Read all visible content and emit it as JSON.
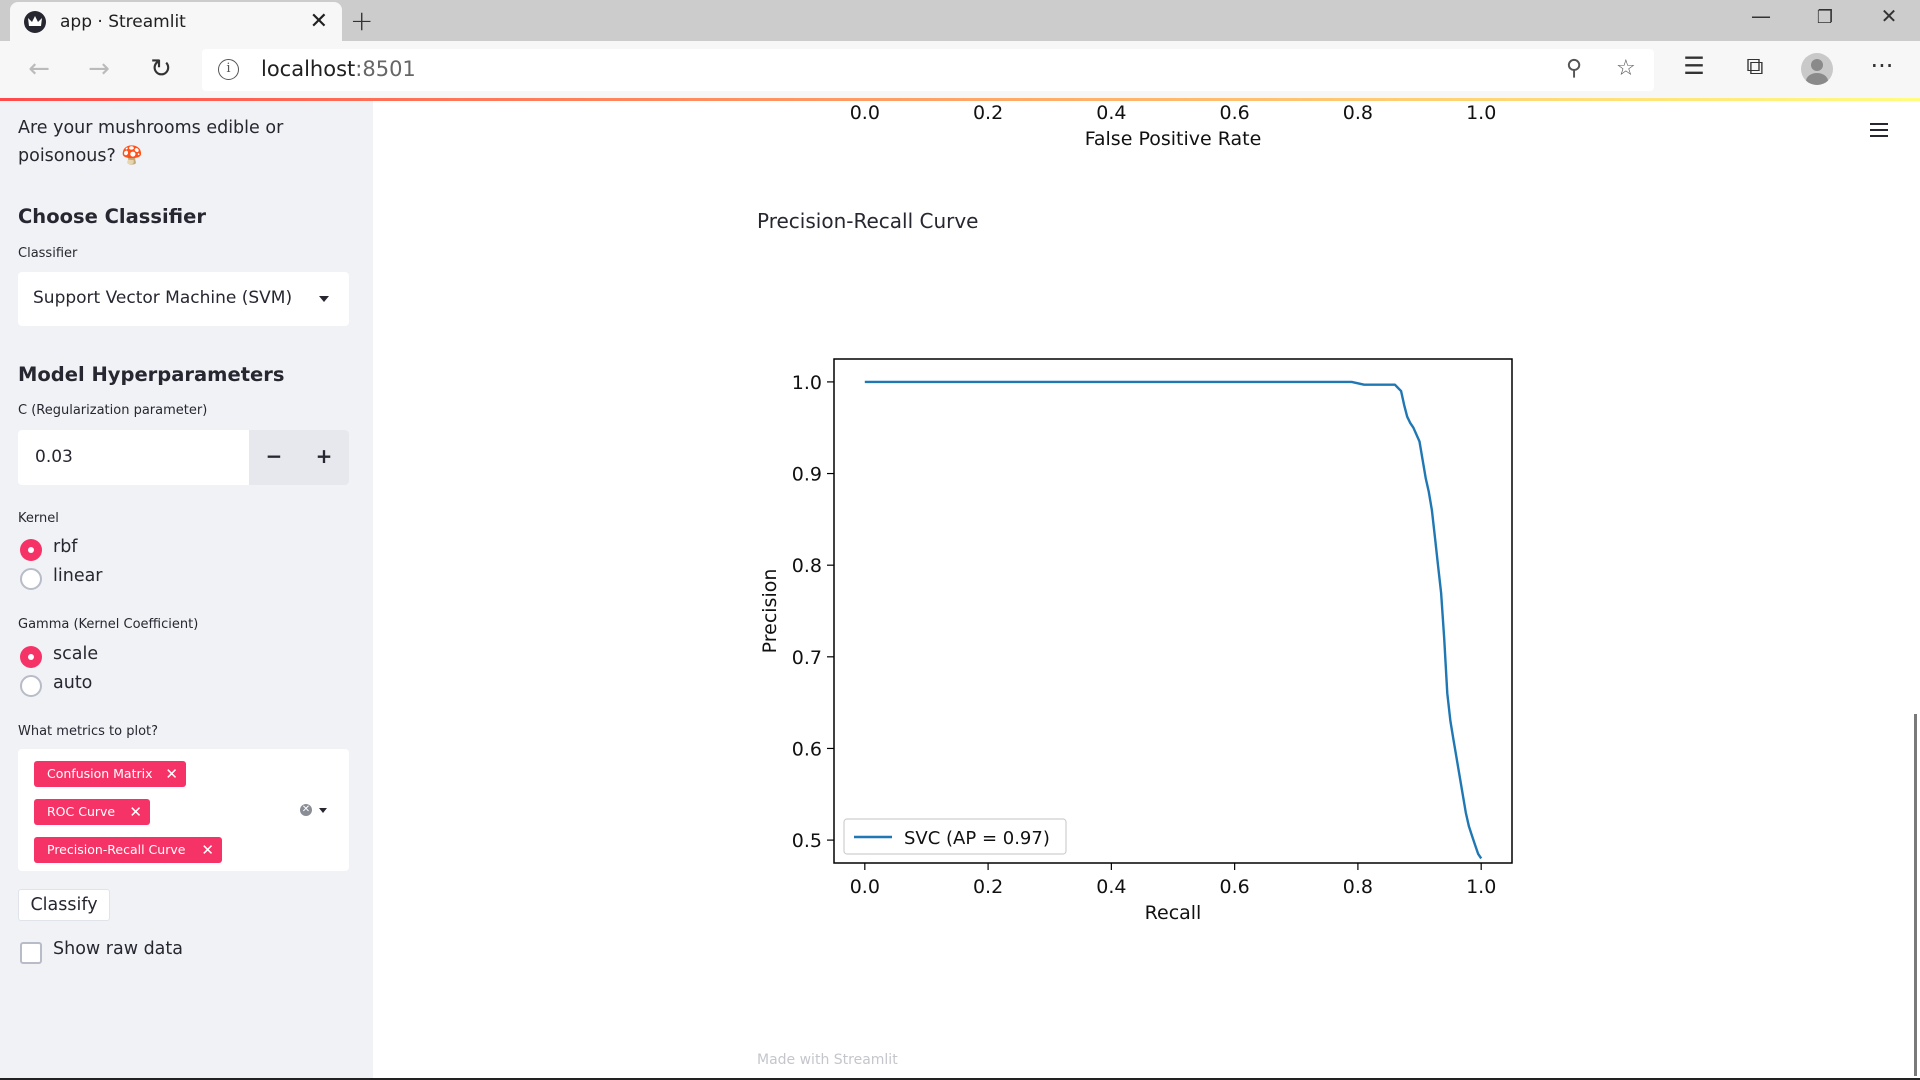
{
  "browser": {
    "tab_title": "app · Streamlit",
    "url_host": "localhost",
    "url_port": ":8501"
  },
  "sidebar": {
    "intro": "Are your mushrooms edible or",
    "intro_line2": "poisonous? 🍄",
    "choose_classifier_heading": "Choose Classifier",
    "classifier_label": "Classifier",
    "classifier_value": "Support Vector Machine (SVM)",
    "hyperparams_heading": "Model Hyperparameters",
    "c_label": "C (Regularization parameter)",
    "c_value": "0.03",
    "c_minus": "−",
    "c_plus": "+",
    "kernel_label": "Kernel",
    "kernel_options": [
      {
        "label": "rbf",
        "checked": true
      },
      {
        "label": "linear",
        "checked": false
      }
    ],
    "gamma_label": "Gamma (Kernel Coefficient)",
    "gamma_options": [
      {
        "label": "scale",
        "checked": true
      },
      {
        "label": "auto",
        "checked": false
      }
    ],
    "metrics_label": "What metrics to plot?",
    "metrics_selected": [
      "Confusion Matrix",
      "ROC Curve",
      "Precision-Recall Curve"
    ],
    "classify_label": "Classify",
    "raw_data_label": "Show raw data"
  },
  "main": {
    "footer": "Made with Streamlit"
  },
  "roc_partial": {
    "xticks": [
      "0.0",
      "0.2",
      "0.4",
      "0.6",
      "0.8",
      "1.0"
    ],
    "xlabel": "False Positive Rate"
  },
  "chart_data": {
    "type": "line",
    "title": "Precision-Recall Curve",
    "xlabel": "Recall",
    "ylabel": "Precision",
    "xlim": [
      -0.05,
      1.05
    ],
    "ylim": [
      0.475,
      1.025
    ],
    "xticks": [
      "0.0",
      "0.2",
      "0.4",
      "0.6",
      "0.8",
      "1.0"
    ],
    "yticks": [
      "0.5",
      "0.6",
      "0.7",
      "0.8",
      "0.9",
      "1.0"
    ],
    "legend": "lower-left",
    "grid": false,
    "series": [
      {
        "name": "SVC (AP = 0.97)",
        "color": "#1f77b4",
        "x": [
          0.0,
          0.5,
          0.79,
          0.81,
          0.86,
          0.87,
          0.875,
          0.88,
          0.885,
          0.89,
          0.9,
          0.905,
          0.91,
          0.915,
          0.92,
          0.925,
          0.93,
          0.935,
          0.94,
          0.945,
          0.95,
          0.955,
          0.96,
          0.965,
          0.97,
          0.975,
          0.98,
          0.985,
          0.99,
          0.995,
          1.0
        ],
        "y": [
          1.0,
          1.0,
          1.0,
          0.997,
          0.997,
          0.99,
          0.975,
          0.962,
          0.955,
          0.95,
          0.935,
          0.915,
          0.895,
          0.88,
          0.86,
          0.83,
          0.8,
          0.77,
          0.72,
          0.66,
          0.63,
          0.61,
          0.59,
          0.57,
          0.55,
          0.53,
          0.515,
          0.505,
          0.495,
          0.485,
          0.48
        ]
      }
    ]
  }
}
